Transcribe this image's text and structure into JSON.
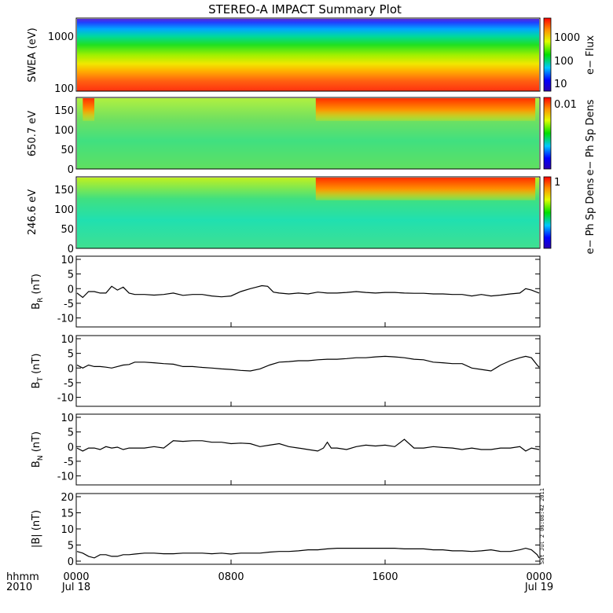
{
  "title": "STEREO-A IMPACT Summary Plot",
  "stamp": "Sat Jul  2 06:08:42 2011",
  "time_axis": {
    "row1_label": "hhmm",
    "row2_label": "2010",
    "ticks": [
      {
        "time": "0000",
        "date": "Jul 18"
      },
      {
        "time": "0800",
        "date": ""
      },
      {
        "time": "1600",
        "date": ""
      },
      {
        "time": "0000",
        "date": "Jul 19"
      }
    ]
  },
  "chart_data": [
    {
      "type": "heatmap",
      "id": "swea",
      "ylabel": "SWEA (eV)",
      "yscale": "log",
      "ylim": [
        100,
        2000
      ],
      "yticks": [
        "100",
        "1000"
      ],
      "colorbar": {
        "label": "e− Flux",
        "scale": "log",
        "ticks": [
          "10",
          "100",
          "1000"
        ],
        "range": [
          5,
          5000
        ]
      },
      "description_of_values": "energy spectrogram, flux decreasing with energy",
      "xlim_hours": [
        0,
        24
      ]
    },
    {
      "type": "heatmap",
      "id": "pad650",
      "ylabel": "650.7 eV",
      "ylim": [
        0,
        180
      ],
      "yticks": [
        "0",
        "50",
        "100",
        "150"
      ],
      "colorbar": {
        "label": "e− Ph Sp Dens",
        "ticks": [
          "0.01"
        ]
      },
      "xlim_hours": [
        0,
        24
      ],
      "high_intensity_intervals_hours": [
        [
          0.3,
          0.9
        ],
        [
          12.4,
          23.8
        ]
      ]
    },
    {
      "type": "heatmap",
      "id": "pad246",
      "ylabel": "246.6 eV",
      "ylim": [
        0,
        180
      ],
      "yticks": [
        "0",
        "50",
        "100",
        "150"
      ],
      "colorbar": {
        "label": "e− Ph Sp Dens",
        "ticks": [
          "1"
        ]
      },
      "xlim_hours": [
        0,
        24
      ],
      "high_intensity_intervals_hours": [
        [
          12.4,
          23.8
        ]
      ]
    },
    {
      "type": "line",
      "id": "br",
      "ylabel": "B",
      "ylabel_sub": "R",
      "ylabel_unit": "(nT)",
      "ylim": [
        -12,
        10
      ],
      "yticks": [
        "-10",
        "-5",
        "0",
        "5",
        "10"
      ],
      "x_hours": [
        0,
        0.3,
        0.6,
        0.9,
        1.2,
        1.5,
        1.8,
        2.1,
        2.4,
        2.7,
        3,
        3.5,
        4,
        4.5,
        5,
        5.5,
        6,
        6.5,
        7,
        7.5,
        8,
        8.5,
        9,
        9.3,
        9.6,
        9.9,
        10.2,
        10.5,
        11,
        11.5,
        12,
        12.5,
        13,
        13.5,
        14,
        14.5,
        15,
        15.5,
        16,
        16.5,
        17,
        17.5,
        18,
        18.5,
        19,
        19.5,
        20,
        20.5,
        21,
        21.5,
        22,
        22.5,
        23,
        23.3,
        23.6,
        24
      ],
      "y": [
        -1.5,
        -3,
        -1,
        -1,
        -1.5,
        -1.5,
        0.8,
        -0.5,
        0.5,
        -1.5,
        -2,
        -2,
        -2.2,
        -2,
        -1.5,
        -2.3,
        -2,
        -2,
        -2.5,
        -2.8,
        -2.5,
        -1,
        0,
        0.5,
        1,
        0.8,
        -1.2,
        -1.5,
        -1.8,
        -1.5,
        -1.8,
        -1.2,
        -1.5,
        -1.5,
        -1.3,
        -1,
        -1.3,
        -1.5,
        -1.3,
        -1.3,
        -1.5,
        -1.6,
        -1.6,
        -1.8,
        -1.8,
        -2,
        -2,
        -2.5,
        -2,
        -2.5,
        -2.2,
        -1.8,
        -1.5,
        0,
        -0.5,
        -1.5
      ]
    },
    {
      "type": "line",
      "id": "bt",
      "ylabel": "B",
      "ylabel_sub": "T",
      "ylabel_unit": "(nT)",
      "ylim": [
        -12,
        10
      ],
      "yticks": [
        "-10",
        "-5",
        "0",
        "5",
        "10"
      ],
      "x_hours": [
        0,
        0.3,
        0.6,
        0.9,
        1.2,
        1.5,
        1.8,
        2.1,
        2.4,
        2.7,
        3,
        3.5,
        4,
        4.5,
        5,
        5.5,
        6,
        6.5,
        7,
        7.5,
        8,
        8.5,
        9,
        9.5,
        10,
        10.5,
        11,
        11.5,
        12,
        12.5,
        13,
        13.5,
        14,
        14.5,
        15,
        15.5,
        16,
        16.5,
        17,
        17.5,
        18,
        18.5,
        19,
        19.5,
        20,
        20.5,
        21,
        21.5,
        22,
        22.5,
        23,
        23.3,
        23.6,
        23.9,
        24
      ],
      "y": [
        1,
        0,
        1,
        0.5,
        0.5,
        0.3,
        0,
        0.5,
        1,
        1.2,
        2,
        2,
        1.8,
        1.5,
        1.3,
        0.5,
        0.5,
        0.2,
        0,
        -0.3,
        -0.5,
        -0.8,
        -1,
        -0.3,
        1,
        2,
        2.2,
        2.5,
        2.5,
        2.8,
        3,
        3,
        3.2,
        3.5,
        3.5,
        3.8,
        4,
        3.8,
        3.5,
        3,
        2.8,
        2,
        1.8,
        1.5,
        1.5,
        0,
        -0.5,
        -1,
        1,
        2.5,
        3.5,
        4,
        3.5,
        1,
        0.3
      ]
    },
    {
      "type": "line",
      "id": "bn",
      "ylabel": "B",
      "ylabel_sub": "N",
      "ylabel_unit": "(nT)",
      "ylim": [
        -12,
        10
      ],
      "yticks": [
        "-10",
        "-5",
        "0",
        "5",
        "10"
      ],
      "x_hours": [
        0,
        0.3,
        0.6,
        0.9,
        1.2,
        1.5,
        1.8,
        2.1,
        2.4,
        2.7,
        3,
        3.5,
        4,
        4.5,
        5,
        5.5,
        6,
        6.5,
        7,
        7.5,
        8,
        8.5,
        9,
        9.5,
        10,
        10.5,
        11,
        11.5,
        12,
        12.5,
        12.8,
        13,
        13.2,
        13.5,
        14,
        14.5,
        15,
        15.5,
        16,
        16.5,
        17,
        17.5,
        18,
        18.5,
        19,
        19.5,
        20,
        20.5,
        21,
        21.5,
        22,
        22.5,
        23,
        23.3,
        23.6,
        24
      ],
      "y": [
        -0.5,
        -1.5,
        -0.5,
        -0.5,
        -1,
        0,
        -0.5,
        -0.2,
        -1,
        -0.5,
        -0.5,
        -0.5,
        0,
        -0.5,
        2,
        1.8,
        2,
        2,
        1.5,
        1.5,
        1,
        1.2,
        1,
        0,
        0.5,
        1,
        0,
        -0.5,
        -1,
        -1.5,
        -0.5,
        1.5,
        -0.5,
        -0.5,
        -1,
        0,
        0.5,
        0.2,
        0.5,
        0,
        2.5,
        -0.5,
        -0.5,
        0,
        -0.3,
        -0.5,
        -1,
        -0.5,
        -1,
        -1,
        -0.5,
        -0.5,
        0,
        -1.5,
        -0.5,
        -1
      ]
    },
    {
      "type": "line",
      "id": "bmag",
      "ylabel": "|B| (nT)",
      "ylim": [
        0,
        20
      ],
      "yticks": [
        "0",
        "5",
        "10",
        "15",
        "20"
      ],
      "x_hours": [
        0,
        0.3,
        0.6,
        0.9,
        1.2,
        1.5,
        1.8,
        2.1,
        2.4,
        2.7,
        3,
        3.5,
        4,
        4.5,
        5,
        5.5,
        6,
        6.5,
        7,
        7.5,
        8,
        8.5,
        9,
        9.5,
        10,
        10.5,
        11,
        11.5,
        12,
        12.5,
        13,
        13.5,
        14,
        14.5,
        15,
        15.5,
        16,
        16.5,
        17,
        17.5,
        18,
        18.5,
        19,
        19.5,
        20,
        20.5,
        21,
        21.5,
        22,
        22.5,
        23,
        23.3,
        23.6,
        23.9,
        24
      ],
      "y": [
        3,
        2.5,
        1.5,
        1,
        2,
        2,
        1.5,
        1.5,
        2,
        2,
        2.2,
        2.5,
        2.5,
        2.3,
        2.3,
        2.5,
        2.5,
        2.5,
        2.3,
        2.5,
        2.2,
        2.5,
        2.5,
        2.5,
        2.8,
        3,
        3,
        3.2,
        3.5,
        3.5,
        3.8,
        4,
        4,
        4,
        4,
        4,
        4,
        4,
        3.8,
        3.8,
        3.8,
        3.5,
        3.5,
        3.2,
        3.2,
        3,
        3.2,
        3.5,
        3,
        3,
        3.5,
        4,
        3.5,
        2,
        1
      ]
    }
  ]
}
